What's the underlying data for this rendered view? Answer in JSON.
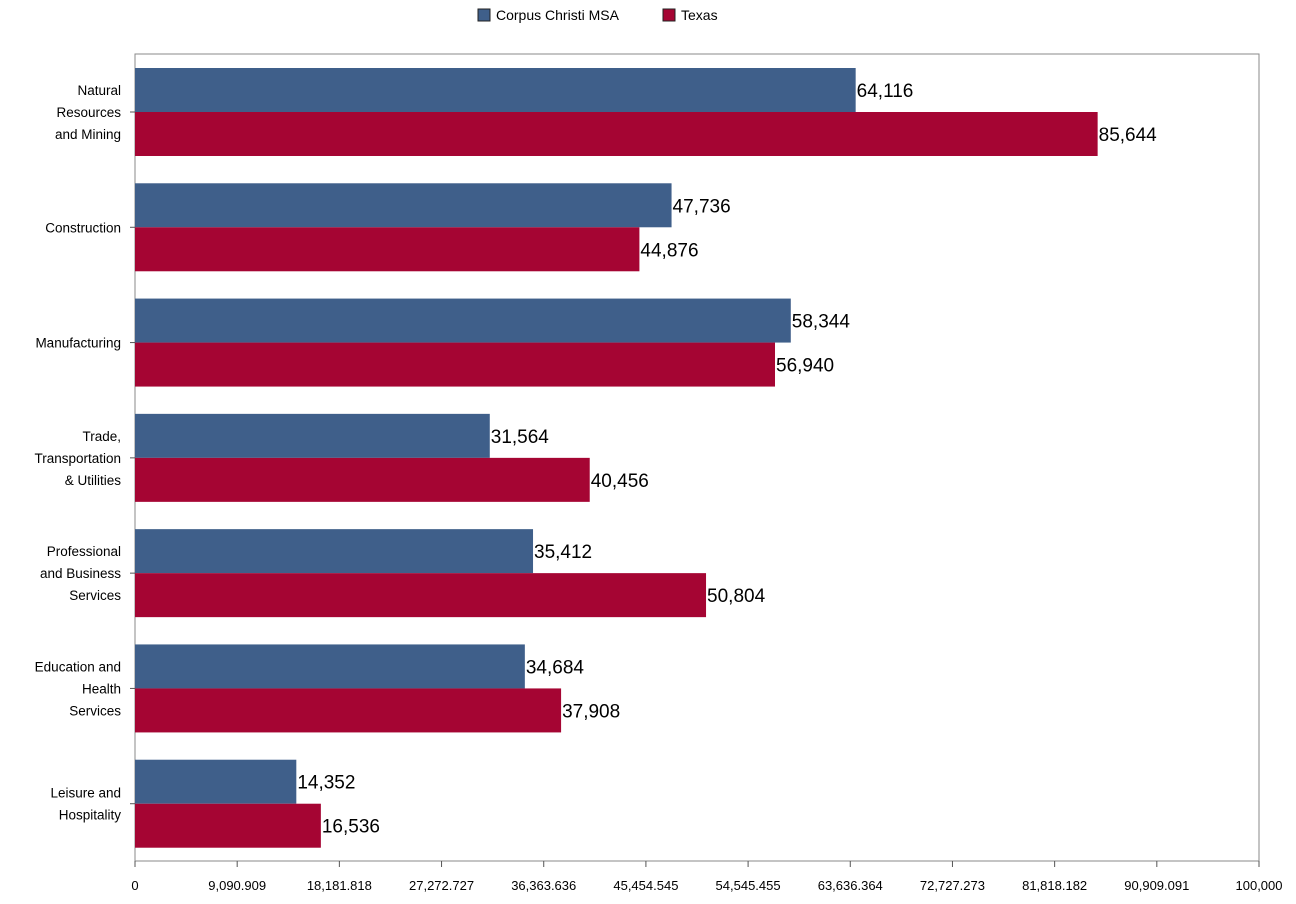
{
  "chart_data": {
    "type": "bar",
    "orientation": "horizontal",
    "categories": [
      [
        "Natural",
        "Resources",
        "and Mining"
      ],
      [
        "Construction"
      ],
      [
        "Manufacturing"
      ],
      [
        "Trade,",
        "Transportation",
        "& Utilities"
      ],
      [
        "Professional",
        "and Business",
        "Services"
      ],
      [
        "Education and",
        "Health",
        "Services"
      ],
      [
        "Leisure and",
        "Hospitality"
      ]
    ],
    "series": [
      {
        "name": "Corpus Christi MSA",
        "color": "#3f5f8a",
        "values": [
          64116,
          47736,
          58344,
          31564,
          35412,
          34684,
          14352
        ],
        "labels": [
          "64,116",
          "47,736",
          "58,344",
          "31,564",
          "35,412",
          "34,684",
          "14,352"
        ]
      },
      {
        "name": "Texas",
        "color": "#a50533",
        "values": [
          85644,
          44876,
          56940,
          40456,
          50804,
          37908,
          16536
        ],
        "labels": [
          "85,644",
          "44,876",
          "56,940",
          "40,456",
          "50,804",
          "37,908",
          "16,536"
        ]
      }
    ],
    "xlim": [
      0,
      100000
    ],
    "x_ticks": [
      0,
      9090.909,
      18181.818,
      27272.727,
      36363.636,
      45454.545,
      54545.455,
      63636.364,
      72727.273,
      81818.182,
      90909.091,
      100000
    ],
    "x_tick_labels": [
      "0",
      "9,090.909",
      "18,181.818",
      "27,272.727",
      "36,363.636",
      "45,454.545",
      "54,545.455",
      "63,636.364",
      "72,727.273",
      "81,818.182",
      "90,909.091",
      "100,000"
    ],
    "title": "",
    "xlabel": "",
    "ylabel": "",
    "grid": false,
    "legend_position": "top-center"
  }
}
